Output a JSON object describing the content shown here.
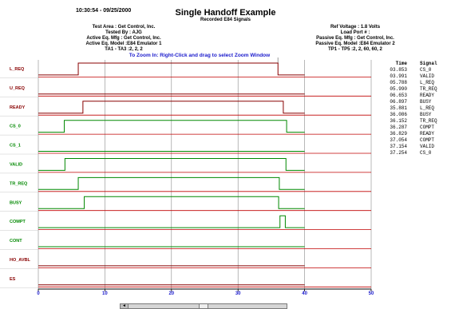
{
  "header": {
    "timestamp": "10:30:54 - 09/25/2000",
    "title": "Single Handoff Example",
    "subtitle": "Recorded E84 Signals",
    "left_info": [
      "Test Area : Get Control, Inc.",
      "Tested By : AJG",
      "Active Eq. Mfg : Get Control, Inc.",
      "Active Eq. Model :E84 Emulator 1",
      "TA1 - TA3 :2, 2, 2"
    ],
    "right_info": [
      "Ref Voltage : 1.8 Volts",
      "Load Port # :",
      "Passive Eq. Mfg : Get Control, Inc.",
      "Passive Eq. Model :E84 Emulator 2",
      "TP1 - TP5 :2, 2, 60, 60, 2"
    ],
    "zoom_hint": "To Zoom In:  Right-Click and drag to select Zoom Window"
  },
  "colors": {
    "active_signal": "#880000",
    "passive_signal": "#008800",
    "baseline": "#c00000",
    "grid": "#8a8a8a",
    "axis_labels": "#1a1acc"
  },
  "chart_data": {
    "type": "line",
    "x_axis": {
      "range": [
        0,
        50
      ],
      "ticks": [
        0,
        10,
        20,
        30,
        40,
        50
      ]
    },
    "cursor_marker_x": 36,
    "grid": "vertical",
    "series": [
      {
        "name": "L_REQ",
        "color": "#880000",
        "segments": [
          [
            6,
            36
          ]
        ]
      },
      {
        "name": "U_REQ",
        "color": "#880000",
        "segments": []
      },
      {
        "name": "READY",
        "color": "#880000",
        "segments": [
          [
            6.7,
            36.8
          ]
        ]
      },
      {
        "name": "CS_0",
        "color": "#008800",
        "segments": [
          [
            3.9,
            37.3
          ]
        ]
      },
      {
        "name": "CS_1",
        "color": "#008800",
        "segments": []
      },
      {
        "name": "VALID",
        "color": "#008800",
        "segments": [
          [
            4,
            37.2
          ]
        ]
      },
      {
        "name": "TR_REQ",
        "color": "#008800",
        "segments": [
          [
            6,
            36.2
          ]
        ]
      },
      {
        "name": "BUSY",
        "color": "#008800",
        "segments": [
          [
            6.9,
            36.1
          ]
        ]
      },
      {
        "name": "COMPT",
        "color": "#008800",
        "segments": [
          [
            36.3,
            37.1
          ]
        ]
      },
      {
        "name": "CONT",
        "color": "#008800",
        "segments": []
      },
      {
        "name": "HO_AVBL",
        "color": "#880000",
        "segments": []
      },
      {
        "name": "ES",
        "color": "#880000",
        "segments": []
      }
    ]
  },
  "event_table": {
    "headers": {
      "time": "Time",
      "signal": "Signal"
    },
    "rows": [
      {
        "time": "03.853",
        "signal": "CS_0"
      },
      {
        "time": "03.991",
        "signal": "VALID"
      },
      {
        "time": "05.788",
        "signal": "L_REQ"
      },
      {
        "time": "05.990",
        "signal": "TR_REQ"
      },
      {
        "time": "06.653",
        "signal": "READY"
      },
      {
        "time": "06.897",
        "signal": "BUSY"
      },
      {
        "time": "35.881",
        "signal": "L_REQ"
      },
      {
        "time": "36.086",
        "signal": "BUSY"
      },
      {
        "time": "36.152",
        "signal": "TR_REQ"
      },
      {
        "time": "36.287",
        "signal": "COMPT"
      },
      {
        "time": "36.829",
        "signal": "READY"
      },
      {
        "time": "37.054",
        "signal": "COMPT"
      },
      {
        "time": "37.154",
        "signal": "VALID"
      },
      {
        "time": "37.254",
        "signal": "CS_0"
      }
    ]
  },
  "scrollbar": {
    "left_arrow": "◄"
  }
}
